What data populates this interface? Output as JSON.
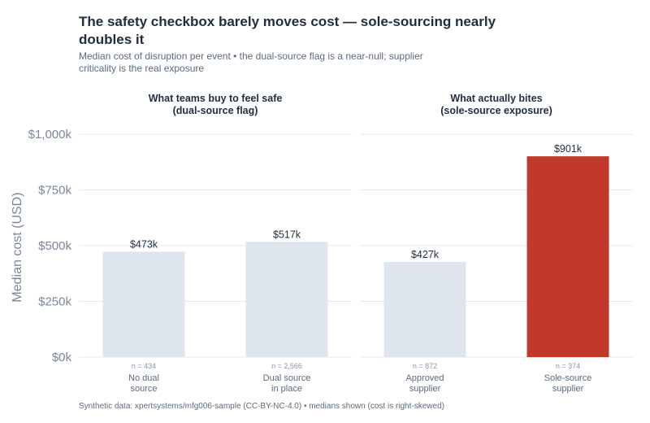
{
  "title": "The safety checkbox barely moves cost — sole-sourcing nearly doubles it",
  "subtitle": "Median cost of disruption per event • the dual-source flag is a near-null; supplier criticality is the real exposure",
  "footer": "Synthetic data: xpertsystems/mfg006-sample (CC-BY-NC-4.0) • medians shown (cost is right-skewed)",
  "colors": {
    "neutral": "#dfe5ee",
    "highlight": "#c0392b",
    "grid": "#e6eaf0"
  },
  "chart_data": {
    "type": "bar",
    "ylabel": "Median cost (USD)",
    "ylim": [
      0,
      1000
    ],
    "yticks": [
      0,
      250,
      500,
      750,
      1000
    ],
    "ytick_labels": [
      "$0k",
      "$250k",
      "$500k",
      "$750k",
      "$1,000k"
    ],
    "grid": true,
    "panels": [
      {
        "title_lines": [
          "What teams buy to feel safe",
          "(dual-source flag)"
        ],
        "bars": [
          {
            "label_lines": [
              "No dual",
              "source"
            ],
            "n": "n = 434",
            "value": 473,
            "value_label": "$473k",
            "highlight": false
          },
          {
            "label_lines": [
              "Dual source",
              "in place"
            ],
            "n": "n = 2,566",
            "value": 517,
            "value_label": "$517k",
            "highlight": false
          }
        ]
      },
      {
        "title_lines": [
          "What actually bites",
          "(sole-source exposure)"
        ],
        "bars": [
          {
            "label_lines": [
              "Approved",
              "supplier"
            ],
            "n": "n = 872",
            "value": 427,
            "value_label": "$427k",
            "highlight": false
          },
          {
            "label_lines": [
              "Sole-source",
              "supplier"
            ],
            "n": "n = 374",
            "value": 901,
            "value_label": "$901k",
            "highlight": true
          }
        ]
      }
    ]
  }
}
